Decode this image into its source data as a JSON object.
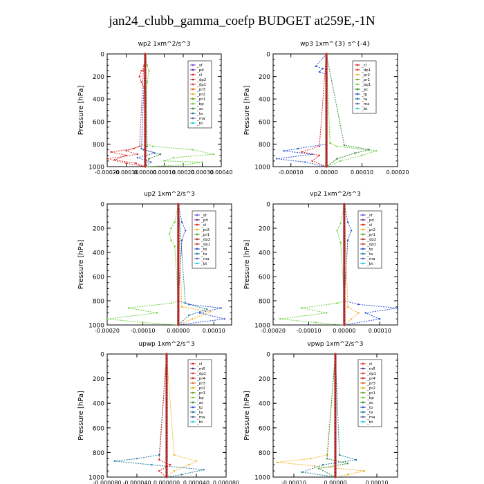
{
  "title": "jan24_clubb_gamma_coefp  BUDGET at259E,-1N",
  "colors": {
    "sf": "#7b4fc8",
    "pd": "#7b2ba0",
    "cl": "#dd2222",
    "dp2": "#b03030",
    "dp1": "#d43c3c",
    "pr3": "#e86a20",
    "pr2": "#f0b020",
    "pr1": "#6a9a20",
    "bp": "#6ad040",
    "ac": "#2a8a2a",
    "tp": "#2a50d0",
    "ta": "#1a7a9a",
    "ma": "#6060a0",
    "bt": "#22c8d8",
    "mfl": "#4a2a80",
    "pr4": "#c02a2a",
    "ctrl": "#8b1a1a"
  },
  "chart_data": [
    {
      "type": "line",
      "title": "wp2   1xm^2/s^3",
      "ylabel": "Pressure [hPa]",
      "xlim": [
        -0.0002,
        0.0004
      ],
      "xticks": [
        "-0.00020",
        "-0.00010",
        "0.00000",
        "0.00010",
        "0.00020",
        "0.00030",
        "0.00040"
      ],
      "ylim": [
        1000,
        0
      ],
      "yticks": [
        0,
        200,
        400,
        600,
        800,
        1000
      ],
      "legend": [
        "_sf",
        "_pd",
        "_cl",
        "_dp2",
        "_dp1",
        "_pr3",
        "_pr2",
        "_pr1",
        "_bp",
        "_ac",
        "_ta",
        "_ma",
        "_bt"
      ],
      "series": [
        {
          "key": "cl",
          "x": [
            0,
            -5e-06,
            -2e-05,
            -3e-05,
            -2e-05,
            -5e-06,
            0,
            -6e-05,
            -0.00018,
            -0.0001,
            -0.00016,
            -5e-05,
            0
          ],
          "y": [
            0,
            100,
            150,
            200,
            250,
            300,
            800,
            840,
            870,
            900,
            940,
            970,
            1000
          ]
        },
        {
          "key": "dp1",
          "x": [
            0,
            -1e-05,
            -3e-05,
            -0.0001,
            -4e-05,
            -0.0002,
            -0.0001,
            0
          ],
          "y": [
            0,
            150,
            820,
            860,
            890,
            930,
            970,
            1000
          ]
        },
        {
          "key": "bp",
          "x": [
            0,
            1e-05,
            2e-05,
            1e-05,
            0,
            4e-05,
            0.00025,
            0.00036,
            0.00015,
            0.0001,
            0.0003,
            0.0002,
            0
          ],
          "y": [
            0,
            100,
            150,
            250,
            790,
            820,
            850,
            890,
            920,
            950,
            960,
            985,
            1000
          ]
        },
        {
          "key": "ac",
          "x": [
            0,
            1e-05,
            -1e-05,
            8e-05,
            2e-05,
            0
          ],
          "y": [
            0,
            820,
            850,
            890,
            930,
            1000
          ]
        },
        {
          "key": "tp",
          "x": [
            0,
            -2e-05,
            5e-05,
            -4e-05,
            3e-05,
            0
          ],
          "y": [
            0,
            840,
            880,
            920,
            960,
            1000
          ]
        },
        {
          "key": "ctrl",
          "x": [
            0,
            0
          ],
          "y": [
            0,
            1000
          ]
        }
      ]
    },
    {
      "type": "line",
      "title": "wp3   1xm^{3} s^{-4}",
      "ylabel": "Pressure [hPa]",
      "xlim": [
        -0.00015,
        0.0002
      ],
      "xticks": [
        "-0.00010",
        "0.00000",
        "0.00010",
        "0.00020"
      ],
      "ylim": [
        1000,
        0
      ],
      "yticks": [
        0,
        200,
        400,
        600,
        800,
        1000
      ],
      "legend": [
        "_cl",
        "_dp1",
        "_pr2",
        "_pr1",
        "_bp1",
        "_ac",
        "_tp",
        "_ta",
        "_ma",
        "_bt"
      ],
      "series": [
        {
          "key": "tp",
          "x": [
            0,
            -3e-05,
            -1e-05,
            -2e-05,
            0,
            0,
            -8e-05,
            -0.00012,
            -4e-05,
            -0.00014,
            -6e-05,
            0
          ],
          "y": [
            0,
            110,
            130,
            160,
            180,
            800,
            840,
            860,
            890,
            930,
            960,
            1000
          ]
        },
        {
          "key": "bp",
          "x": [
            0,
            1e-05,
            3e-05,
            0.00014,
            0.0001,
            4e-05,
            0
          ],
          "y": [
            0,
            790,
            820,
            860,
            900,
            950,
            1000
          ]
        },
        {
          "key": "ac",
          "x": [
            0,
            5e-05,
            0.00012,
            8e-05,
            3e-05,
            0
          ],
          "y": [
            0,
            810,
            850,
            880,
            930,
            1000
          ]
        },
        {
          "key": "cl",
          "x": [
            0,
            -2e-05,
            -7e-05,
            -2e-05,
            -4e-05,
            0
          ],
          "y": [
            0,
            820,
            870,
            900,
            950,
            1000
          ]
        },
        {
          "key": "ctrl",
          "x": [
            0,
            0
          ],
          "y": [
            0,
            1000
          ]
        }
      ]
    },
    {
      "type": "line",
      "title": "up2   1xm^2/s^3",
      "ylabel": "Pressure [hPa]",
      "xlim": [
        -0.0002,
        0.00015
      ],
      "xticks": [
        "-0.00020",
        "-0.00010",
        "0.00000",
        "0.00010"
      ],
      "ylim": [
        1000,
        0
      ],
      "yticks": [
        0,
        200,
        400,
        600,
        800,
        1000
      ],
      "legend": [
        "_sf",
        "_pd",
        "_cl",
        "_pr2",
        "_pr1",
        "_dp2",
        "_dp1",
        "_tp",
        "_ta",
        "_ma",
        "_bt"
      ],
      "series": [
        {
          "key": "bp",
          "x": [
            0,
            -1e-05,
            -2e-05,
            -2.5e-05,
            -2e-05,
            -1e-05,
            0,
            -2e-05,
            -0.00014,
            -6e-05,
            -0.0002,
            -0.0001,
            0
          ],
          "y": [
            0,
            150,
            200,
            250,
            300,
            350,
            800,
            820,
            860,
            900,
            950,
            980,
            1000
          ]
        },
        {
          "key": "tp",
          "x": [
            0,
            1e-05,
            2e-05,
            1e-05,
            0,
            3e-05,
            0.00012,
            6e-05,
            0.00013,
            0
          ],
          "y": [
            0,
            150,
            220,
            300,
            800,
            830,
            860,
            900,
            950,
            1000
          ]
        },
        {
          "key": "pr2",
          "x": [
            0,
            1e-05,
            9e-05,
            4e-05,
            0
          ],
          "y": [
            0,
            850,
            890,
            950,
            1000
          ]
        },
        {
          "key": "ta",
          "x": [
            0,
            2e-05,
            8e-05,
            3e-05,
            0
          ],
          "y": [
            0,
            820,
            870,
            920,
            1000
          ]
        },
        {
          "key": "ctrl",
          "x": [
            0,
            0
          ],
          "y": [
            0,
            1000
          ]
        }
      ]
    },
    {
      "type": "line",
      "title": "vp2   1xm^2/s^3",
      "ylabel": "Pressure [hPa]",
      "xlim": [
        -0.0002,
        0.00015
      ],
      "xticks": [
        "-0.00020",
        "-0.00010",
        "0.00000",
        "0.00010"
      ],
      "ylim": [
        1000,
        0
      ],
      "yticks": [
        0,
        200,
        400,
        600,
        800,
        1000
      ],
      "legend": [
        "_sf",
        "_pd",
        "_cl",
        "_pr2",
        "_pr1",
        "_dp2",
        "_dp1",
        "_tp",
        "_ta",
        "_ma",
        "_bt"
      ],
      "series": [
        {
          "key": "bp",
          "x": [
            0,
            -1e-05,
            -2e-05,
            -1e-05,
            0,
            -2e-05,
            -0.00012,
            -5e-05,
            -0.00018,
            -8e-05,
            0
          ],
          "y": [
            0,
            160,
            220,
            320,
            800,
            820,
            860,
            900,
            950,
            980,
            1000
          ]
        },
        {
          "key": "tp",
          "x": [
            0,
            1e-05,
            2e-05,
            1e-05,
            0,
            4e-05,
            0.00015,
            6e-05,
            0.0001,
            0
          ],
          "y": [
            0,
            150,
            220,
            300,
            800,
            830,
            860,
            900,
            950,
            1000
          ]
        },
        {
          "key": "pr2",
          "x": [
            0,
            1e-05,
            4e-05,
            2e-05,
            0
          ],
          "y": [
            0,
            850,
            900,
            950,
            1000
          ]
        },
        {
          "key": "ctrl",
          "x": [
            0,
            0
          ],
          "y": [
            0,
            1000
          ]
        }
      ]
    },
    {
      "type": "line",
      "title": "upwp   1xm^2/s^3",
      "ylabel": "Pressure [hPa]",
      "xlim": [
        -8e-05,
        8e-05
      ],
      "xticks": [
        "-0.000080",
        "-0.000040",
        "0.000000",
        "0.000040",
        "0.000080"
      ],
      "ylim": [
        1000,
        0
      ],
      "yticks": [
        0,
        200,
        400,
        600,
        800,
        1000
      ],
      "legend": [
        "_cl",
        "_mfl",
        "_dp1",
        "_pr4",
        "_pr3",
        "_pr2",
        "_pr1",
        "_bp",
        "_ac",
        "_tp",
        "_ta",
        "_ma",
        "_bt"
      ],
      "series": [
        {
          "key": "ta",
          "x": [
            0,
            -1e-05,
            -4e-05,
            -7e-05,
            -2e-05,
            5e-05,
            2e-05,
            0
          ],
          "y": [
            0,
            820,
            850,
            870,
            900,
            940,
            980,
            1000
          ]
        },
        {
          "key": "pr2",
          "x": [
            0,
            1e-05,
            4e-05,
            3e-05,
            1e-05,
            0
          ],
          "y": [
            0,
            820,
            870,
            900,
            950,
            1000
          ]
        },
        {
          "key": "cl",
          "x": [
            0,
            -1e-05,
            5e-06,
            -1e-05,
            0
          ],
          "y": [
            0,
            860,
            900,
            950,
            1000
          ]
        },
        {
          "key": "ctrl",
          "x": [
            0,
            0
          ],
          "y": [
            0,
            1000
          ]
        }
      ]
    },
    {
      "type": "line",
      "title": "vpwp   1xm^2/s^3",
      "ylabel": "Pressure [hPa]",
      "xlim": [
        -0.00015,
        0.00015
      ],
      "xticks": [
        "-0.00010",
        "0.00000",
        "0.00010"
      ],
      "ylim": [
        1000,
        0
      ],
      "yticks": [
        0,
        200,
        400,
        600,
        800,
        1000
      ],
      "legend": [
        "_cl",
        "_mfl",
        "_dp1",
        "_pr4",
        "_pr3",
        "_pr2",
        "_pr1",
        "_bp",
        "_ac",
        "_tp",
        "_ta",
        "_ma",
        "_bt"
      ],
      "series": [
        {
          "key": "pr2",
          "x": [
            0,
            -2e-05,
            -6e-05,
            -0.00014,
            -5e-05,
            7e-05,
            3e-05,
            0
          ],
          "y": [
            0,
            820,
            850,
            880,
            910,
            950,
            980,
            1000
          ]
        },
        {
          "key": "ta",
          "x": [
            0,
            1e-05,
            5e-05,
            -3e-05,
            -8e-05,
            0
          ],
          "y": [
            0,
            820,
            860,
            900,
            960,
            1000
          ]
        },
        {
          "key": "ac",
          "x": [
            0,
            -2e-05,
            3e-05,
            -4e-05,
            0
          ],
          "y": [
            0,
            850,
            890,
            930,
            1000
          ]
        },
        {
          "key": "ctrl",
          "x": [
            0,
            0
          ],
          "y": [
            0,
            1000
          ]
        }
      ]
    }
  ]
}
